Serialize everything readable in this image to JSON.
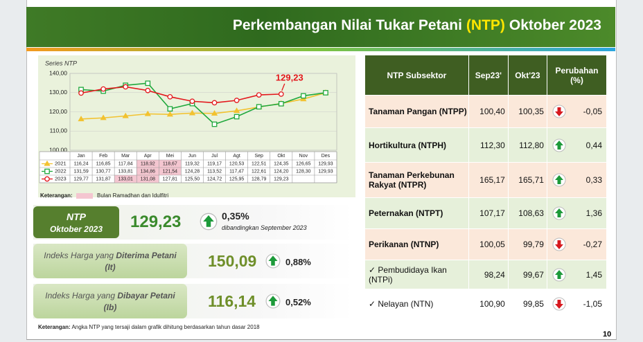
{
  "header": {
    "title_start": "Perkembangan Nilai Tukar Petani",
    "title_highlight": "(NTP)",
    "title_end": "Oktober 2023"
  },
  "chart_data": {
    "type": "line",
    "title": "Series NTP",
    "categories": [
      "Jan",
      "Feb",
      "Mar",
      "Apr",
      "Mei",
      "Jun",
      "Jul",
      "Agt",
      "Sep",
      "Okt",
      "Nov",
      "Des"
    ],
    "series": [
      {
        "name": "2021",
        "color": "#f2c230",
        "marker": "triangle",
        "highlight": [
          3,
          4
        ],
        "values": [
          116.24,
          116.85,
          117.84,
          118.92,
          118.67,
          119.32,
          119.17,
          120.53,
          122.51,
          124.35,
          126.65,
          129.93
        ],
        "value_labels": [
          "116,24",
          "116,85",
          "117,84",
          "118,92",
          "118,67",
          "119,32",
          "119,17",
          "120,53",
          "122,51",
          "124,35",
          "126,65",
          "129,93"
        ]
      },
      {
        "name": "2022",
        "color": "#1fa83c",
        "marker": "square",
        "highlight": [
          3,
          4
        ],
        "values": [
          131.59,
          130.77,
          133.81,
          134.86,
          121.54,
          124.28,
          113.52,
          117.47,
          122.61,
          124.2,
          128.3,
          129.93
        ],
        "value_labels": [
          "131,59",
          "130,77",
          "133,81",
          "134,86",
          "121,54",
          "124,28",
          "113,52",
          "117,47",
          "122,61",
          "124,20",
          "128,30",
          "129,93"
        ]
      },
      {
        "name": "2023",
        "color": "#e3161b",
        "marker": "circle",
        "highlight": [
          2,
          3
        ],
        "values": [
          129.77,
          131.87,
          133.01,
          131.08,
          127.81,
          125.5,
          124.72,
          125.95,
          128.79,
          129.23,
          null,
          null
        ],
        "value_labels": [
          "129,77",
          "131,87",
          "133,01",
          "131,08",
          "127,81",
          "125,50",
          "124,72",
          "125,95",
          "128,79",
          "129,23",
          null,
          null
        ]
      }
    ],
    "ylim": [
      100,
      140
    ],
    "yticks": [
      {
        "value": 100,
        "label": "100,00"
      },
      {
        "value": 110,
        "label": "110,00"
      },
      {
        "value": 120,
        "label": "120,00"
      },
      {
        "value": 130,
        "label": "130,00"
      },
      {
        "value": 140,
        "label": "140,00"
      }
    ],
    "grid": true,
    "annotation": {
      "text": "129,23",
      "series": 2,
      "index": 9
    },
    "legend_note": {
      "label": "Keterangan:",
      "text": "Bulan Ramadhan dan Idulfitri",
      "color": "#f4c6d0"
    }
  },
  "ntp": {
    "label": "NTP",
    "period": "Oktober 2023",
    "value": "129,23",
    "trend": "up",
    "change": "0,35%",
    "note": "dibandingkan September 2023"
  },
  "indices": [
    {
      "prefix": "Indeks Harga yang",
      "emphasis": "Diterima Petani",
      "code": "(It)",
      "value": "150,09",
      "trend": "up",
      "change": "0,88%"
    },
    {
      "prefix": "Indeks Harga yang",
      "emphasis": "Dibayar Petani",
      "code": "(Ib)",
      "value": "116,14",
      "trend": "up",
      "change": "0,52%"
    }
  ],
  "footnote": {
    "label": "Keterangan:",
    "text": "Angka NTP yang tersaji dalam grafik dihitung berdasarkan tahun dasar 2018"
  },
  "table": {
    "columns": [
      "NTP Subsektor",
      "Sep23'",
      "Okt'23",
      "Perubahan (%)"
    ],
    "rows": [
      {
        "name": "Tanaman Pangan (NTPP)",
        "sep": "100,40",
        "okt": "100,35",
        "trend": "down",
        "change": "-0,05",
        "sub": false
      },
      {
        "name": "Hortikultura (NTPH)",
        "sep": "112,30",
        "okt": "112,80",
        "trend": "up",
        "change": "0,44",
        "sub": false
      },
      {
        "name": "Tanaman Perkebunan Rakyat (NTPR)",
        "sep": "165,17",
        "okt": "165,71",
        "trend": "up",
        "change": "0,33",
        "sub": false
      },
      {
        "name": "Peternakan (NTPT)",
        "sep": "107,17",
        "okt": "108,63",
        "trend": "up",
        "change": "1,36",
        "sub": false
      },
      {
        "name": "Perikanan (NTNP)",
        "sep": "100,05",
        "okt": "99,79",
        "trend": "down",
        "change": "-0,27",
        "sub": false
      },
      {
        "name": "Pembudidaya Ikan (NTPi)",
        "sep": "98,24",
        "okt": "99,67",
        "trend": "up",
        "change": "1,45",
        "sub": true
      },
      {
        "name": "Nelayan (NTN)",
        "sep": "100,90",
        "okt": "99,85",
        "trend": "down",
        "change": "-1,05",
        "sub": true
      }
    ]
  },
  "page_number": "10"
}
